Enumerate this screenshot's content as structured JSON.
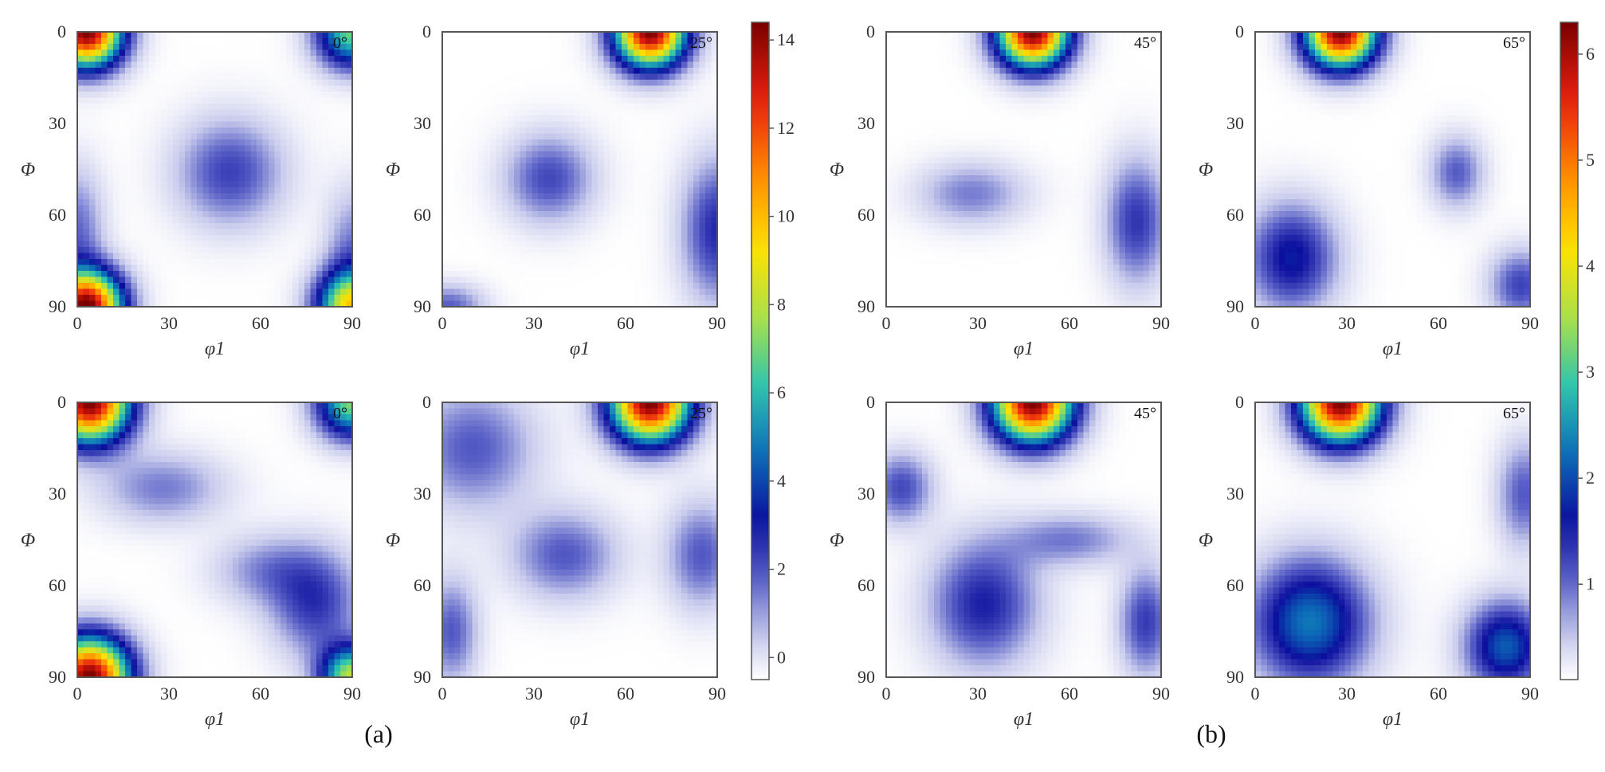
{
  "figure": {
    "panel_labels": [
      "(a)",
      "(b)"
    ],
    "colormap": [
      "#ffffff",
      "#c8cbec",
      "#5b62c7",
      "#0b0f9e",
      "#0c6ab8",
      "#2ac3b2",
      "#a8e04b",
      "#ffe200",
      "#ff8a00",
      "#e81e0f",
      "#7a0000"
    ]
  },
  "chart_data": [
    {
      "group": "(a)",
      "type": "heatmap",
      "annotation": "0°",
      "xlabel": "φ1",
      "ylabel": "Φ",
      "xlim": [
        0,
        90
      ],
      "ylim": [
        0,
        90
      ],
      "x_ticks": [
        "0",
        "30",
        "60",
        "90"
      ],
      "y_ticks": [
        "0",
        "30",
        "60",
        "90"
      ],
      "vmax": 14,
      "peaks": [
        {
          "x": 3,
          "y": 0,
          "value": 14.0,
          "sx": 8,
          "sy": 8
        },
        {
          "x": 90,
          "y": 0,
          "value": 7.0,
          "sx": 8,
          "sy": 8
        },
        {
          "x": 3,
          "y": 90,
          "value": 14.0,
          "sx": 8,
          "sy": 8
        },
        {
          "x": 90,
          "y": 90,
          "value": 9.0,
          "sx": 8,
          "sy": 8
        },
        {
          "x": 50,
          "y": 46,
          "value": 2.6,
          "sx": 12,
          "sy": 12
        },
        {
          "x": 0,
          "y": 65,
          "value": 2.0,
          "sx": 6,
          "sy": 14
        },
        {
          "x": 90,
          "y": 72,
          "value": 1.8,
          "sx": 6,
          "sy": 14
        }
      ]
    },
    {
      "group": "(a)",
      "type": "heatmap",
      "annotation": "25°",
      "xlabel": "φ1",
      "ylabel": "Φ",
      "xlim": [
        0,
        90
      ],
      "ylim": [
        0,
        90
      ],
      "x_ticks": [
        "0",
        "30",
        "60",
        "90"
      ],
      "y_ticks": [
        "0",
        "30",
        "60",
        "90"
      ],
      "vmax": 14,
      "peaks": [
        {
          "x": 68,
          "y": 0,
          "value": 14.0,
          "sx": 8,
          "sy": 8
        },
        {
          "x": 35,
          "y": 48,
          "value": 2.5,
          "sx": 10,
          "sy": 10
        },
        {
          "x": 90,
          "y": 65,
          "value": 3.0,
          "sx": 8,
          "sy": 16
        },
        {
          "x": 2,
          "y": 90,
          "value": 2.2,
          "sx": 8,
          "sy": 5
        }
      ]
    },
    {
      "group": "(a)",
      "type": "heatmap",
      "annotation": "45°",
      "xlabel": "φ1",
      "ylabel": "Φ",
      "xlim": [
        0,
        90
      ],
      "ylim": [
        0,
        90
      ],
      "x_ticks": [
        "0",
        "30",
        "60",
        "90"
      ],
      "y_ticks": [
        "0",
        "30",
        "60",
        "90"
      ],
      "vmax": 14,
      "peaks": [
        {
          "x": 48,
          "y": 0,
          "value": 14.0,
          "sx": 8,
          "sy": 8
        },
        {
          "x": 28,
          "y": 53,
          "value": 1.8,
          "sx": 12,
          "sy": 7
        },
        {
          "x": 82,
          "y": 62,
          "value": 2.8,
          "sx": 7,
          "sy": 14
        }
      ]
    },
    {
      "group": "(a)",
      "type": "heatmap",
      "annotation": "65°",
      "xlabel": "φ1",
      "ylabel": "Φ",
      "xlim": [
        0,
        90
      ],
      "ylim": [
        0,
        90
      ],
      "x_ticks": [
        "0",
        "30",
        "60",
        "90"
      ],
      "y_ticks": [
        "0",
        "30",
        "60",
        "90"
      ],
      "vmax": 14,
      "peaks": [
        {
          "x": 28,
          "y": 0,
          "value": 14.0,
          "sx": 8,
          "sy": 8
        },
        {
          "x": 12,
          "y": 74,
          "value": 3.6,
          "sx": 10,
          "sy": 12
        },
        {
          "x": 66,
          "y": 46,
          "value": 2.2,
          "sx": 6,
          "sy": 8
        },
        {
          "x": 87,
          "y": 83,
          "value": 2.6,
          "sx": 7,
          "sy": 8
        }
      ]
    },
    {
      "group": "(b)",
      "type": "heatmap",
      "annotation": "0°",
      "xlabel": "φ1",
      "ylabel": "Φ",
      "xlim": [
        0,
        90
      ],
      "ylim": [
        0,
        90
      ],
      "x_ticks": [
        "0",
        "30",
        "60",
        "90"
      ],
      "y_ticks": [
        "0",
        "30",
        "60",
        "90"
      ],
      "vmax": 6.2,
      "peaks": [
        {
          "x": 4,
          "y": 0,
          "value": 6.2,
          "sx": 9,
          "sy": 9
        },
        {
          "x": 90,
          "y": 0,
          "value": 3.2,
          "sx": 8,
          "sy": 8
        },
        {
          "x": 4,
          "y": 90,
          "value": 6.2,
          "sx": 9,
          "sy": 9
        },
        {
          "x": 90,
          "y": 90,
          "value": 3.5,
          "sx": 7,
          "sy": 7
        },
        {
          "x": 78,
          "y": 66,
          "value": 1.2,
          "sx": 10,
          "sy": 12
        },
        {
          "x": 28,
          "y": 28,
          "value": 0.8,
          "sx": 14,
          "sy": 8
        },
        {
          "x": 62,
          "y": 55,
          "value": 0.7,
          "sx": 12,
          "sy": 8
        }
      ]
    },
    {
      "group": "(b)",
      "type": "heatmap",
      "annotation": "25°",
      "xlabel": "φ1",
      "ylabel": "Φ",
      "xlim": [
        0,
        90
      ],
      "ylim": [
        0,
        90
      ],
      "x_ticks": [
        "0",
        "30",
        "60",
        "90"
      ],
      "y_ticks": [
        "0",
        "30",
        "60",
        "90"
      ],
      "vmax": 6.2,
      "peaks": [
        {
          "x": 68,
          "y": 0,
          "value": 6.2,
          "sx": 9,
          "sy": 9
        },
        {
          "x": 10,
          "y": 15,
          "value": 1.0,
          "sx": 14,
          "sy": 14
        },
        {
          "x": 40,
          "y": 50,
          "value": 1.0,
          "sx": 12,
          "sy": 10
        },
        {
          "x": 85,
          "y": 50,
          "value": 1.0,
          "sx": 8,
          "sy": 12
        },
        {
          "x": 3,
          "y": 75,
          "value": 1.0,
          "sx": 6,
          "sy": 12
        }
      ]
    },
    {
      "group": "(b)",
      "type": "heatmap",
      "annotation": "45°",
      "xlabel": "φ1",
      "ylabel": "Φ",
      "xlim": [
        0,
        90
      ],
      "ylim": [
        0,
        90
      ],
      "x_ticks": [
        "0",
        "30",
        "60",
        "90"
      ],
      "y_ticks": [
        "0",
        "30",
        "60",
        "90"
      ],
      "vmax": 6.2,
      "peaks": [
        {
          "x": 48,
          "y": 0,
          "value": 6.2,
          "sx": 9,
          "sy": 9
        },
        {
          "x": 32,
          "y": 66,
          "value": 1.4,
          "sx": 12,
          "sy": 14
        },
        {
          "x": 85,
          "y": 72,
          "value": 1.2,
          "sx": 6,
          "sy": 12
        },
        {
          "x": 5,
          "y": 28,
          "value": 1.1,
          "sx": 7,
          "sy": 8
        },
        {
          "x": 60,
          "y": 45,
          "value": 0.8,
          "sx": 14,
          "sy": 6
        }
      ]
    },
    {
      "group": "(b)",
      "type": "heatmap",
      "annotation": "65°",
      "xlabel": "φ1",
      "ylabel": "Φ",
      "xlim": [
        0,
        90
      ],
      "ylim": [
        0,
        90
      ],
      "x_ticks": [
        "0",
        "30",
        "60",
        "90"
      ],
      "y_ticks": [
        "0",
        "30",
        "60",
        "90"
      ],
      "vmax": 6.2,
      "peaks": [
        {
          "x": 28,
          "y": 0,
          "value": 6.2,
          "sx": 9,
          "sy": 9
        },
        {
          "x": 18,
          "y": 72,
          "value": 2.2,
          "sx": 13,
          "sy": 14
        },
        {
          "x": 82,
          "y": 80,
          "value": 2.0,
          "sx": 9,
          "sy": 10
        },
        {
          "x": 88,
          "y": 30,
          "value": 1.0,
          "sx": 6,
          "sy": 12
        }
      ]
    }
  ],
  "colorbars": [
    {
      "group": "(a)",
      "ticks": [
        "0",
        "2",
        "4",
        "6",
        "8",
        "10",
        "12",
        "14"
      ],
      "min": -0.5,
      "max": 14.4
    },
    {
      "group": "(b)",
      "ticks": [
        "1",
        "2",
        "3",
        "4",
        "5",
        "6"
      ],
      "min": 0.1,
      "max": 6.3
    }
  ]
}
